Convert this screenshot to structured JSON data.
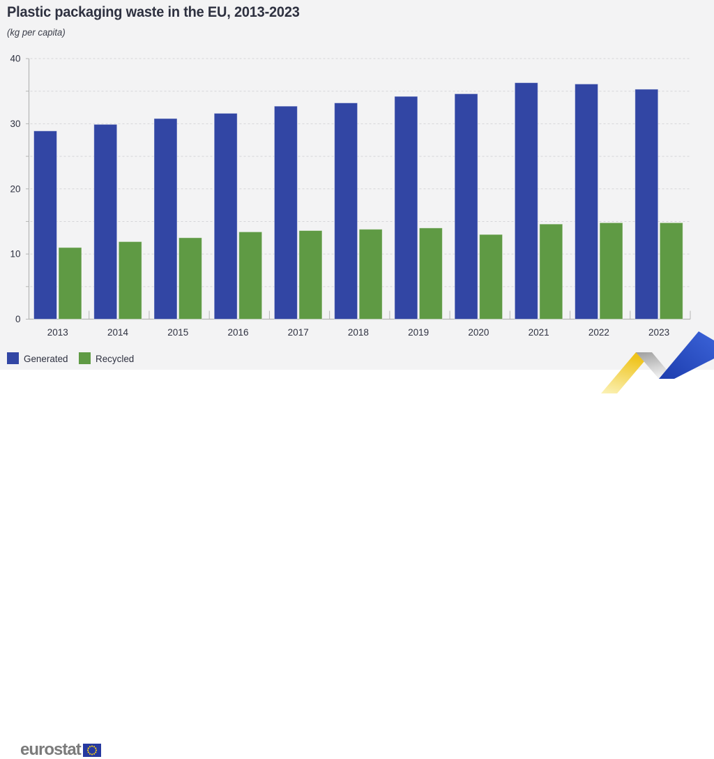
{
  "header": {
    "title": "Plastic packaging waste in the EU, 2013-2023",
    "subtitle": "(kg per capita)"
  },
  "chart_data": {
    "type": "bar",
    "title": "Plastic packaging waste in the EU, 2013-2023",
    "unit_label": "(kg per capita)",
    "categories": [
      "2013",
      "2014",
      "2015",
      "2016",
      "2017",
      "2018",
      "2019",
      "2020",
      "2021",
      "2022",
      "2023"
    ],
    "series": [
      {
        "name": "Generated",
        "color": "#3246a4",
        "values": [
          28.9,
          29.9,
          30.8,
          31.6,
          32.7,
          33.2,
          34.2,
          34.6,
          36.3,
          36.1,
          35.3
        ]
      },
      {
        "name": "Recycled",
        "color": "#5f9a44",
        "values": [
          11.0,
          11.9,
          12.5,
          13.4,
          13.6,
          13.8,
          14.0,
          13.0,
          14.6,
          14.8,
          14.8
        ]
      }
    ],
    "ylim": [
      0,
      40
    ],
    "y_major_tick_labels": [
      "0",
      "10",
      "20",
      "30",
      "40"
    ],
    "y_grid_interval": 5,
    "grid": "horizontal-dashed",
    "legend_position": "bottom-left",
    "xlabel": "",
    "ylabel": ""
  },
  "legend": {
    "items": [
      {
        "label": "Generated",
        "color": "#3246a4"
      },
      {
        "label": "Recycled",
        "color": "#5f9a44"
      }
    ]
  },
  "footer": {
    "logo_text": "eurostat"
  },
  "icons": {
    "eu_flag": "eu-flag-icon",
    "ribbon": "eurostat-ribbon-decoration"
  },
  "colors": {
    "background": "#f3f3f4",
    "footer_background": "#ffffff",
    "bar_blue": "#3246a4",
    "bar_green": "#5f9a44",
    "text": "#2e3140",
    "axis": "#b5b6b5",
    "grid": "#d5d5d8",
    "logo_gray": "#7b7b7b",
    "flag_blue": "#2639a0",
    "star_yellow": "#f7d117",
    "ribbon_yellow": "#efc31a",
    "ribbon_gray": "#a9a9a9",
    "ribbon_blue": "#2b50c8"
  }
}
